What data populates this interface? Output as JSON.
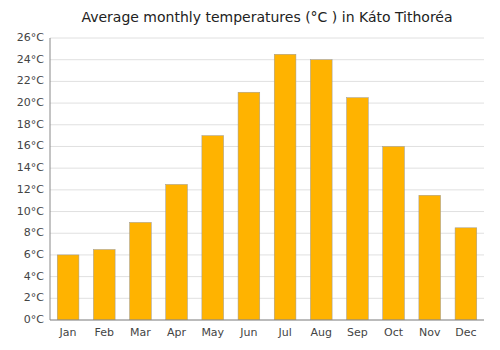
{
  "chart_data": {
    "type": "bar",
    "title": "Average monthly temperatures (°C ) in Káto Tithoréa",
    "categories": [
      "Jan",
      "Feb",
      "Mar",
      "Apr",
      "May",
      "Jun",
      "Jul",
      "Aug",
      "Sep",
      "Oct",
      "Nov",
      "Dec"
    ],
    "values": [
      6.0,
      6.5,
      9.0,
      12.5,
      17.0,
      21.0,
      24.5,
      24.0,
      20.5,
      16.0,
      11.5,
      8.5
    ],
    "color": "#FFB300",
    "ylim": [
      0,
      26
    ],
    "yticks": [
      {
        "value": 0,
        "label": "0°C"
      },
      {
        "value": 2,
        "label": "2°C"
      },
      {
        "value": 4,
        "label": "4°C"
      },
      {
        "value": 6,
        "label": "6°C"
      },
      {
        "value": 8,
        "label": "8°C"
      },
      {
        "value": 10,
        "label": "10°C"
      },
      {
        "value": 12,
        "label": "12°C"
      },
      {
        "value": 14,
        "label": "14°C"
      },
      {
        "value": 16,
        "label": "16°C"
      },
      {
        "value": 18,
        "label": "18°C"
      },
      {
        "value": 20,
        "label": "20°C"
      },
      {
        "value": 22,
        "label": "22°C"
      },
      {
        "value": 24,
        "label": "24°C"
      },
      {
        "value": 26,
        "label": "26°C"
      }
    ],
    "grid": true
  }
}
